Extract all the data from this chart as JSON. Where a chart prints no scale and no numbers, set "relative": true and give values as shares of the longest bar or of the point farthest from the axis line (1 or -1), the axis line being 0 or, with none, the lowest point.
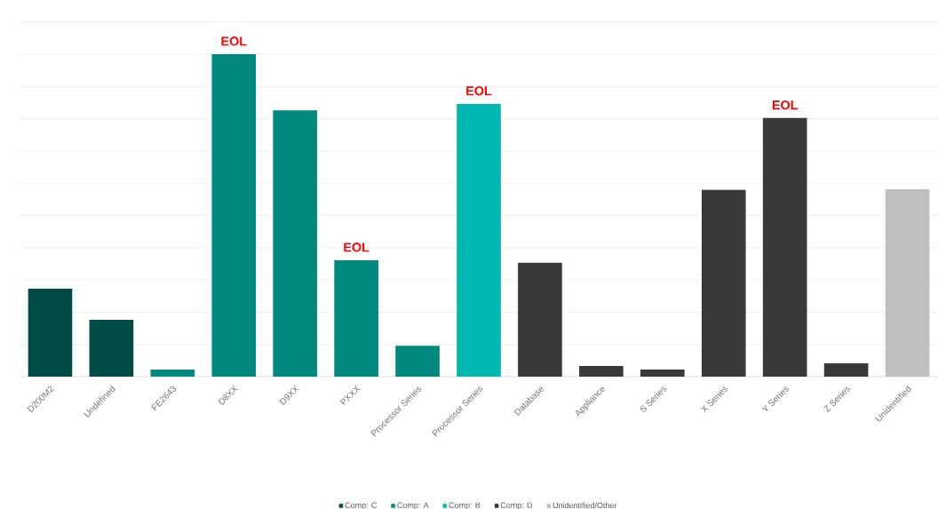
{
  "chart_data": {
    "type": "bar",
    "relative": true,
    "grid": "y",
    "legend": "bottom",
    "categories": [
      "D200M2",
      "Undefined",
      "FE2643",
      "D8XX",
      "D9XX",
      "PXXX",
      "Processor Series",
      "Processor Series",
      "Database",
      "Appliance",
      "S Series",
      "X Series",
      "Y Series",
      "Z Series",
      "Unidentified"
    ],
    "series": [
      {
        "name": "Comp: C",
        "color": "#004d47",
        "values": [
          0.273,
          0.176,
          null,
          null,
          null,
          null,
          null,
          null,
          null,
          null,
          null,
          null,
          null,
          null,
          null
        ]
      },
      {
        "name": "Comp: A",
        "color": "#00897f",
        "values": [
          null,
          null,
          0.022,
          1,
          0.826,
          0.361,
          0.096,
          null,
          null,
          null,
          null,
          null,
          null,
          null,
          null
        ]
      },
      {
        "name": "Comp: B",
        "color": "#00b8b2",
        "values": [
          null,
          null,
          null,
          null,
          null,
          null,
          null,
          0.846,
          null,
          null,
          null,
          null,
          null,
          null,
          null
        ]
      },
      {
        "name": "Comp: D",
        "color": "#3a3838",
        "values": [
          null,
          null,
          null,
          null,
          null,
          null,
          null,
          null,
          0.353,
          0.033,
          0.022,
          0.579,
          0.802,
          0.041,
          null
        ]
      },
      {
        "name": "Unidentified/Other",
        "color": "#bfbfbf",
        "values": [
          null,
          null,
          null,
          null,
          null,
          null,
          null,
          null,
          null,
          null,
          null,
          null,
          null,
          null,
          0.581
        ]
      }
    ],
    "annotations": [
      {
        "text": "EOL",
        "x": "D8XX",
        "y": 1
      },
      {
        "text": "EOL",
        "x": "PXXX",
        "y": 0.361
      },
      "EOL",
      {
        "text": "EOL",
        "x": "Y Series",
        "y": 0.802
      }
    ]
  }
}
